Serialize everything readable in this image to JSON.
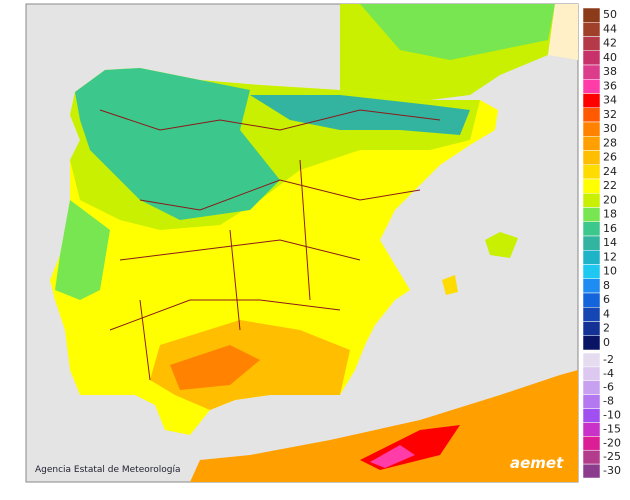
{
  "credit": "Agencia Estatal de Meteorología",
  "logo": "aemet",
  "legend": {
    "positive": [
      {
        "label": "50",
        "color": "#8b3a1a"
      },
      {
        "label": "44",
        "color": "#a0402a"
      },
      {
        "label": "42",
        "color": "#b43a4a"
      },
      {
        "label": "40",
        "color": "#c8326a"
      },
      {
        "label": "38",
        "color": "#dc3c8c"
      },
      {
        "label": "36",
        "color": "#ff3ca8"
      },
      {
        "label": "34",
        "color": "#ff0000"
      },
      {
        "label": "32",
        "color": "#ff5a00"
      },
      {
        "label": "30",
        "color": "#ff8200"
      },
      {
        "label": "28",
        "color": "#ffa000"
      },
      {
        "label": "26",
        "color": "#ffbe00"
      },
      {
        "label": "24",
        "color": "#ffdc00"
      },
      {
        "label": "22",
        "color": "#ffff00"
      },
      {
        "label": "20",
        "color": "#c8f000"
      },
      {
        "label": "18",
        "color": "#78e650"
      },
      {
        "label": "16",
        "color": "#3cc88c"
      },
      {
        "label": "14",
        "color": "#32b4a0"
      },
      {
        "label": "12",
        "color": "#1eb4c8"
      },
      {
        "label": "10",
        "color": "#1ec8f0"
      },
      {
        "label": "8",
        "color": "#1e8cf0"
      },
      {
        "label": "6",
        "color": "#1464dc"
      },
      {
        "label": "4",
        "color": "#1446b4"
      },
      {
        "label": "2",
        "color": "#143296"
      },
      {
        "label": "0",
        "color": "#0a1464"
      }
    ],
    "negative": [
      {
        "label": "-2",
        "color": "#e6dcf0"
      },
      {
        "label": "-4",
        "color": "#dcc8f0"
      },
      {
        "label": "-6",
        "color": "#c8a0f0"
      },
      {
        "label": "-8",
        "color": "#b478f0"
      },
      {
        "label": "-10",
        "color": "#a050f0"
      },
      {
        "label": "-15",
        "color": "#c832c8"
      },
      {
        "label": "-20",
        "color": "#dc1e96"
      },
      {
        "label": "-25",
        "color": "#b43c8c"
      },
      {
        "label": "-30",
        "color": "#8c3c8c"
      }
    ]
  }
}
